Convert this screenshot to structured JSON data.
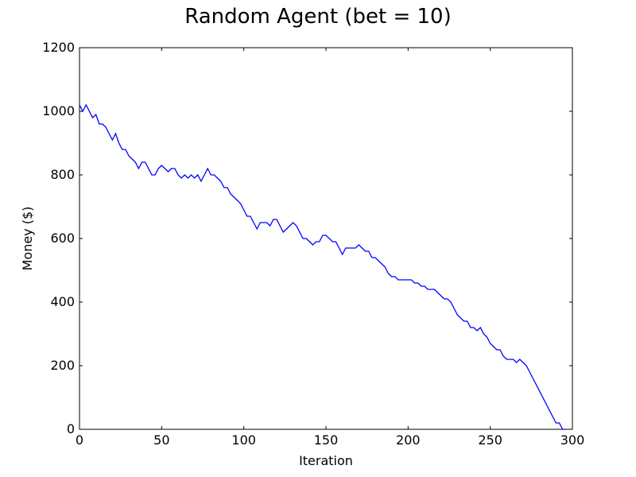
{
  "chart_data": {
    "type": "line",
    "title": "Random Agent (bet = 10)",
    "xlabel": "Iteration",
    "ylabel": "Money ($)",
    "xlim": [
      0,
      300
    ],
    "ylim": [
      0,
      1200
    ],
    "xticks": [
      0,
      50,
      100,
      150,
      200,
      250,
      300
    ],
    "yticks": [
      0,
      200,
      400,
      600,
      800,
      1000,
      1200
    ],
    "grid": false,
    "line_color": "#0000ff",
    "series": [
      {
        "x": [
          0,
          2,
          4,
          6,
          8,
          10,
          12,
          14,
          16,
          18,
          20,
          22,
          24,
          26,
          28,
          30,
          32,
          34,
          36,
          38,
          40,
          42,
          44,
          46,
          48,
          50,
          52,
          54,
          56,
          58,
          60,
          62,
          64,
          66,
          68,
          70,
          72,
          74,
          76,
          78,
          80,
          82,
          84,
          86,
          88,
          90,
          92,
          94,
          96,
          98,
          100,
          102,
          104,
          106,
          108,
          110,
          112,
          114,
          116,
          118,
          120,
          122,
          124,
          126,
          128,
          130,
          132,
          134,
          136,
          138,
          140,
          142,
          144,
          146,
          148,
          150,
          152,
          154,
          156,
          158,
          160,
          162,
          164,
          166,
          168,
          170,
          172,
          174,
          176,
          178,
          180,
          182,
          184,
          186,
          188,
          190,
          192,
          194,
          196,
          198,
          200,
          202,
          204,
          206,
          208,
          210,
          212,
          214,
          216,
          218,
          220,
          222,
          224,
          226,
          228,
          230,
          232,
          234,
          236,
          238,
          240,
          242,
          244,
          246,
          248,
          250,
          252,
          254,
          256,
          258,
          260,
          262,
          264,
          266,
          268,
          270,
          272,
          274,
          276,
          278,
          280,
          282,
          284,
          286,
          288,
          290,
          292,
          294,
          296
        ],
        "values": [
          1020,
          1000,
          1020,
          1000,
          980,
          990,
          960,
          960,
          950,
          930,
          910,
          930,
          900,
          880,
          880,
          860,
          850,
          840,
          820,
          840,
          840,
          820,
          800,
          800,
          820,
          830,
          820,
          810,
          820,
          820,
          800,
          790,
          800,
          790,
          800,
          790,
          800,
          780,
          800,
          820,
          800,
          800,
          790,
          780,
          760,
          760,
          740,
          730,
          720,
          710,
          690,
          670,
          670,
          650,
          630,
          650,
          650,
          650,
          640,
          660,
          660,
          640,
          620,
          630,
          640,
          650,
          640,
          620,
          600,
          600,
          590,
          580,
          590,
          590,
          610,
          610,
          600,
          590,
          590,
          570,
          550,
          570,
          570,
          570,
          570,
          580,
          570,
          560,
          560,
          540,
          540,
          530,
          520,
          510,
          490,
          480,
          480,
          470,
          470,
          470,
          470,
          470,
          460,
          460,
          450,
          450,
          440,
          440,
          440,
          430,
          420,
          410,
          410,
          400,
          380,
          360,
          350,
          340,
          340,
          320,
          320,
          310,
          320,
          300,
          290,
          270,
          260,
          250,
          250,
          230,
          220,
          220,
          220,
          210,
          220,
          210,
          200,
          180,
          160,
          140,
          120,
          100,
          80,
          60,
          40,
          20,
          20,
          0,
          0
        ]
      }
    ]
  }
}
